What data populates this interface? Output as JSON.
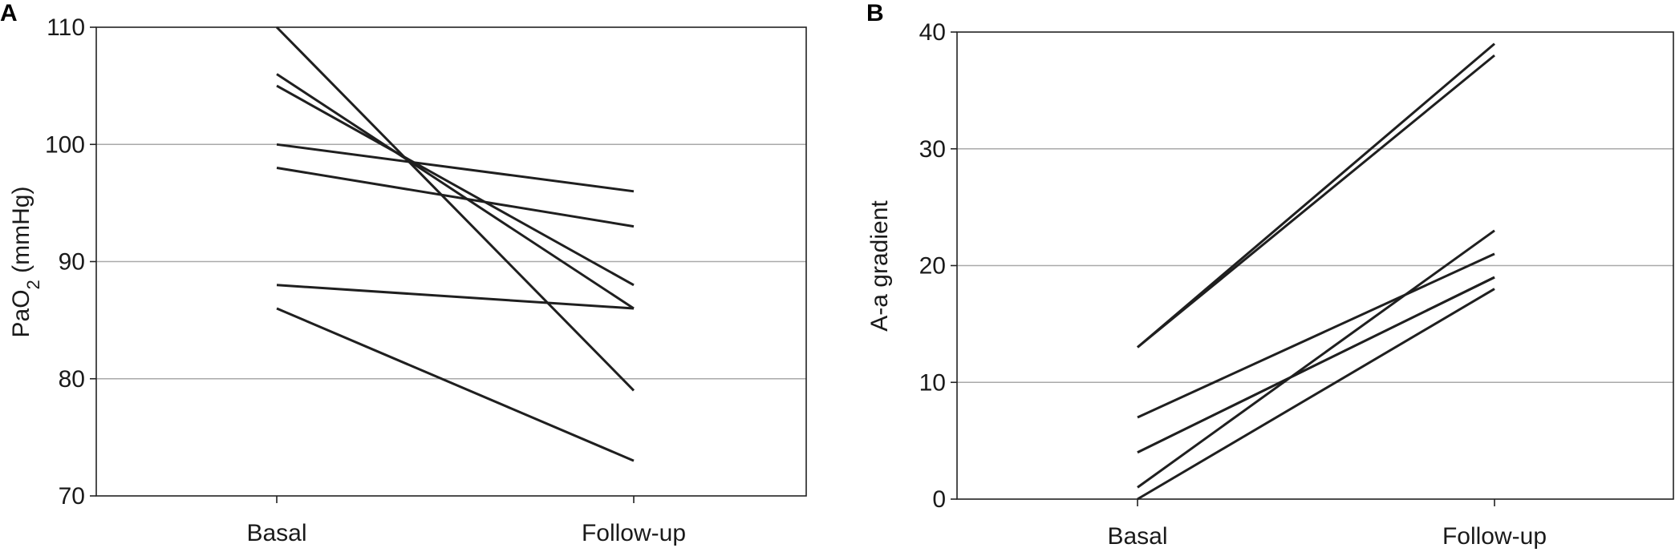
{
  "chart_data": [
    {
      "panel": "A",
      "type": "line",
      "x": [
        "Basal",
        "Follow-up"
      ],
      "ylabel": {
        "main": "PaO",
        "sub": "2",
        "unit": " (mmHg)"
      },
      "ylim": [
        70,
        110
      ],
      "yticks": [
        70,
        80,
        90,
        100,
        110
      ],
      "grid": true,
      "series": [
        {
          "values": [
            110,
            79
          ]
        },
        {
          "values": [
            106,
            86
          ]
        },
        {
          "values": [
            105,
            88
          ]
        },
        {
          "values": [
            100,
            96
          ]
        },
        {
          "values": [
            98,
            93
          ]
        },
        {
          "values": [
            88,
            86
          ]
        },
        {
          "values": [
            86,
            73
          ]
        }
      ]
    },
    {
      "panel": "B",
      "type": "line",
      "x": [
        "Basal",
        "Follow-up"
      ],
      "ylabel": {
        "main": "A-a gradient",
        "sub": "",
        "unit": ""
      },
      "ylim": [
        0,
        40
      ],
      "yticks": [
        0,
        10,
        20,
        30,
        40
      ],
      "grid": true,
      "series": [
        {
          "values": [
            13,
            39
          ]
        },
        {
          "values": [
            13,
            38
          ]
        },
        {
          "values": [
            7,
            21
          ]
        },
        {
          "values": [
            4,
            19
          ]
        },
        {
          "values": [
            4,
            19
          ]
        },
        {
          "values": [
            1,
            23
          ]
        },
        {
          "values": [
            0,
            18
          ]
        }
      ]
    }
  ]
}
